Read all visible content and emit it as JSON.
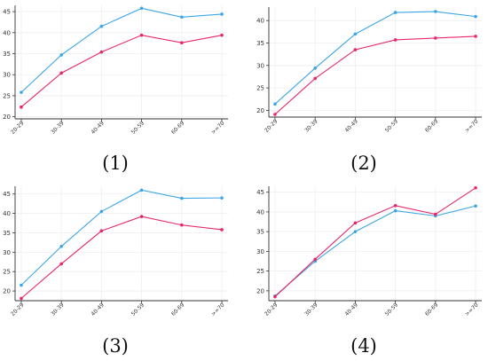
{
  "panel_labels": [
    "(1)",
    "(2)",
    "(3)",
    "(4)"
  ],
  "colors": {
    "blue": "#3da6e6",
    "red": "#e8266e",
    "grid": "#eeeeee",
    "axis": "#333333"
  },
  "chart_data": [
    {
      "type": "line",
      "panel_label": "(1)",
      "categories": [
        "20-29",
        "30-39",
        "40-49",
        "50-59",
        "60-69",
        ">=70"
      ],
      "ylim": [
        19.5,
        46.5
      ],
      "yticks": [
        20,
        25,
        30,
        35,
        40,
        45
      ],
      "grid": true,
      "series": [
        {
          "color": "#3da6e6",
          "values": [
            25.8,
            34.7,
            41.5,
            45.8,
            43.7,
            44.4
          ]
        },
        {
          "color": "#e8266e",
          "values": [
            22.3,
            30.4,
            35.4,
            39.4,
            37.6,
            39.4
          ]
        }
      ]
    },
    {
      "type": "line",
      "panel_label": "(2)",
      "categories": [
        "20-29",
        "30-39",
        "40-49",
        "50-59",
        "60-69",
        ">=70"
      ],
      "ylim": [
        18.5,
        43.0
      ],
      "yticks": [
        20,
        25,
        30,
        35,
        40
      ],
      "grid": true,
      "series": [
        {
          "color": "#3da6e6",
          "values": [
            21.4,
            29.4,
            37.0,
            41.8,
            42.0,
            40.9
          ]
        },
        {
          "color": "#e8266e",
          "values": [
            19.1,
            27.1,
            33.5,
            35.7,
            36.1,
            36.5
          ]
        }
      ]
    },
    {
      "type": "line",
      "panel_label": "(3)",
      "categories": [
        "20-29",
        "30-39",
        "40-49",
        "50-59",
        "60-69",
        ">=70"
      ],
      "ylim": [
        17.5,
        47.0
      ],
      "yticks": [
        20,
        25,
        30,
        35,
        40,
        45
      ],
      "grid": true,
      "series": [
        {
          "color": "#3da6e6",
          "values": [
            21.5,
            31.5,
            40.5,
            46.0,
            43.9,
            44.0
          ]
        },
        {
          "color": "#e8266e",
          "values": [
            18.1,
            27.0,
            35.5,
            39.2,
            37.0,
            35.8
          ]
        }
      ]
    },
    {
      "type": "line",
      "panel_label": "(4)",
      "categories": [
        "20-29",
        "30-39",
        "40-49",
        "50-59",
        "60-69",
        ">=70"
      ],
      "ylim": [
        17.5,
        46.5
      ],
      "yticks": [
        20,
        25,
        30,
        35,
        40,
        45
      ],
      "grid": true,
      "series": [
        {
          "color": "#3da6e6",
          "values": [
            18.7,
            27.5,
            35.0,
            40.3,
            39.0,
            41.5
          ]
        },
        {
          "color": "#e8266e",
          "values": [
            18.5,
            28.0,
            37.2,
            41.6,
            39.4,
            46.1
          ]
        }
      ]
    }
  ]
}
